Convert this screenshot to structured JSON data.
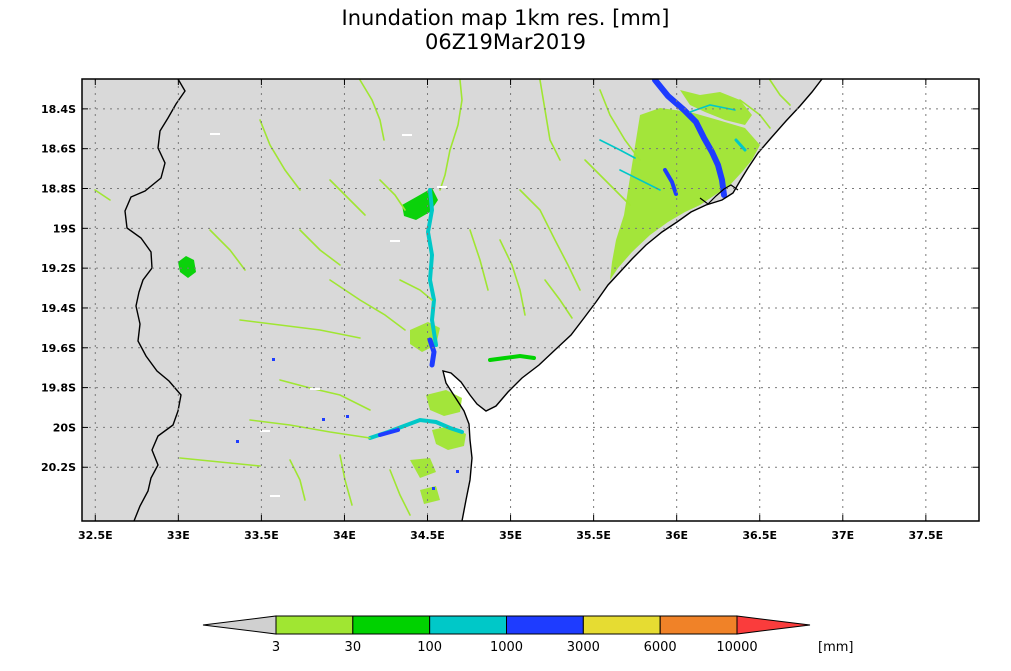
{
  "title": {
    "line1": "Inundation map 1km res. [mm]",
    "line2": "06Z19Mar2019"
  },
  "map": {
    "lon_range": [
      32.42,
      37.82
    ],
    "lat_range": [
      -20.47,
      -18.25
    ],
    "land_color": "#d9d9d9",
    "ocean_color": "#ffffff",
    "grid": true,
    "lon_ticks": [
      "32.5E",
      "33E",
      "33.5E",
      "34E",
      "34.5E",
      "35E",
      "35.5E",
      "36E",
      "36.5E",
      "37E",
      "37.5E"
    ],
    "lon_tick_values": [
      32.5,
      33,
      33.5,
      34,
      34.5,
      35,
      35.5,
      36,
      36.5,
      37,
      37.5
    ],
    "lat_ticks": [
      "18.4S",
      "18.6S",
      "18.8S",
      "19S",
      "19.2S",
      "19.4S",
      "19.6S",
      "19.8S",
      "20S",
      "20.2S"
    ],
    "lat_tick_values": [
      -18.4,
      -18.6,
      -18.8,
      -19.0,
      -19.2,
      -19.4,
      -19.6,
      -19.8,
      -20.0,
      -20.2
    ]
  },
  "colorbar": {
    "colors": [
      "#d0d0d0",
      "#a0e632",
      "#00d200",
      "#00c8c8",
      "#1e3cff",
      "#e6dc32",
      "#f08228",
      "#fa3c3c"
    ],
    "labels": [
      "3",
      "30",
      "100",
      "1000",
      "3000",
      "6000",
      "10000"
    ],
    "unit": "[mm]"
  }
}
